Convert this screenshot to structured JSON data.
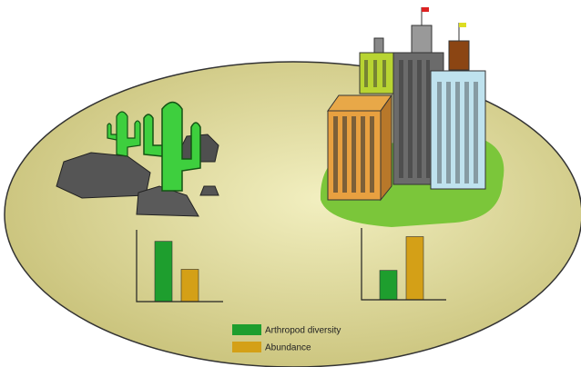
{
  "chart_data": [
    {
      "type": "bar",
      "categories": [
        null
      ],
      "ylim": [
        0,
        100
      ],
      "series": [
        {
          "name": "Arthropod diversity",
          "color": "#1e9e2e",
          "values": [
            84
          ]
        },
        {
          "name": "Abundance",
          "color": "#d4a017",
          "values": [
            45
          ]
        }
      ]
    },
    {
      "type": "bar",
      "categories": [
        null
      ],
      "ylim": [
        0,
        100
      ],
      "series": [
        {
          "color": "#1e9e2e",
          "values": [
            41
          ]
        },
        {
          "color": "#d4a017",
          "values": [
            88
          ]
        }
      ]
    }
  ]
}
